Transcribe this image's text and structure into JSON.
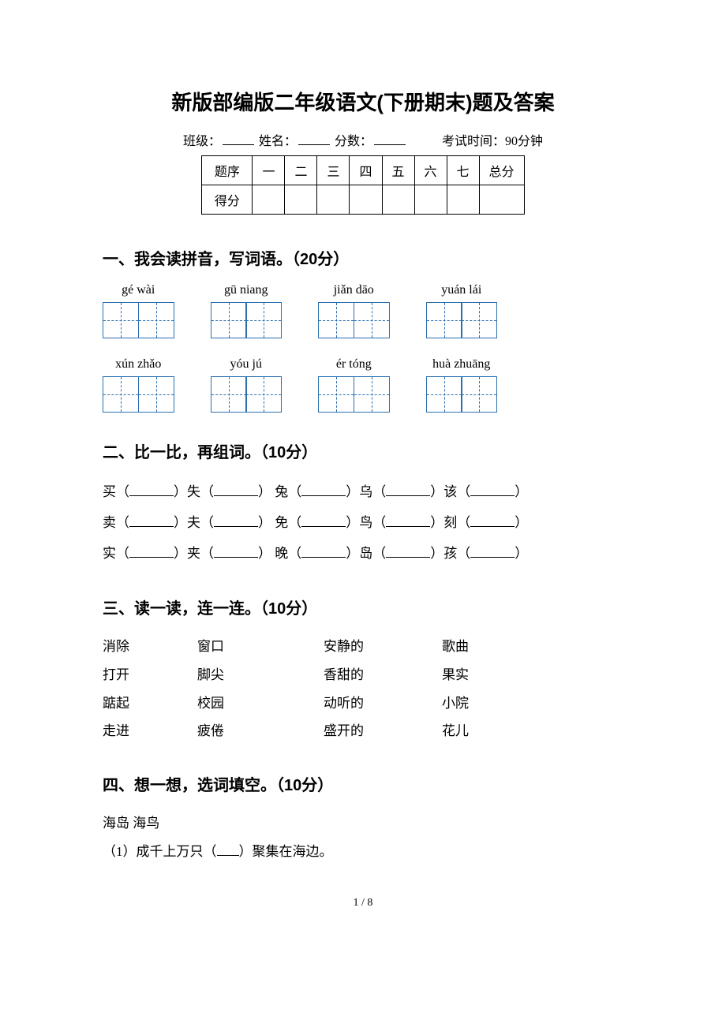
{
  "title": "新版部编版二年级语文(下册期末)题及答案",
  "meta": {
    "class_label": "班级：",
    "name_label": "姓名：",
    "score_label": "分数：",
    "time_label": "考试时间：90分钟"
  },
  "score_table": {
    "row1": [
      "题序",
      "一",
      "二",
      "三",
      "四",
      "五",
      "六",
      "七",
      "总分"
    ],
    "row2_label": "得分"
  },
  "sections": {
    "s1": {
      "title": "一、我会读拼音，写词语。（20分）",
      "items": [
        {
          "pinyin": "gé wài",
          "boxes": 2
        },
        {
          "pinyin": "gū niang",
          "boxes": 2
        },
        {
          "pinyin": "jiǎn dāo",
          "boxes": 2
        },
        {
          "pinyin": "yuán lái",
          "boxes": 2
        },
        {
          "pinyin": "xún zhǎo",
          "boxes": 2
        },
        {
          "pinyin": "yóu jú",
          "boxes": 2
        },
        {
          "pinyin": "ér tóng",
          "boxes": 2
        },
        {
          "pinyin": "huà zhuāng",
          "boxes": 2
        }
      ]
    },
    "s2": {
      "title": "二、比一比，再组词。（10分）",
      "lines": [
        [
          "买",
          "失",
          "兔",
          "乌",
          "该"
        ],
        [
          "卖",
          "夫",
          "免",
          "鸟",
          "刻"
        ],
        [
          "实",
          "夹",
          "晚",
          "岛",
          "孩"
        ]
      ]
    },
    "s3": {
      "title": "三、读一读，连一连。（10分）",
      "left": [
        [
          "消除",
          "窗口"
        ],
        [
          "打开",
          "脚尖"
        ],
        [
          "踮起",
          "校园"
        ],
        [
          "走进",
          "疲倦"
        ]
      ],
      "right": [
        [
          "安静的",
          "歌曲"
        ],
        [
          "香甜的",
          "果实"
        ],
        [
          "动听的",
          "小院"
        ],
        [
          "盛开的",
          "花儿"
        ]
      ]
    },
    "s4": {
      "title": "四、想一想，选词填空。（10分）",
      "options": "海岛 海鸟",
      "q1": "（1）成千上万只（___）聚集在海边。"
    }
  },
  "page": "1 / 8",
  "colors": {
    "box_border": "#2a6fb0",
    "text": "#000000",
    "bg": "#ffffff"
  }
}
